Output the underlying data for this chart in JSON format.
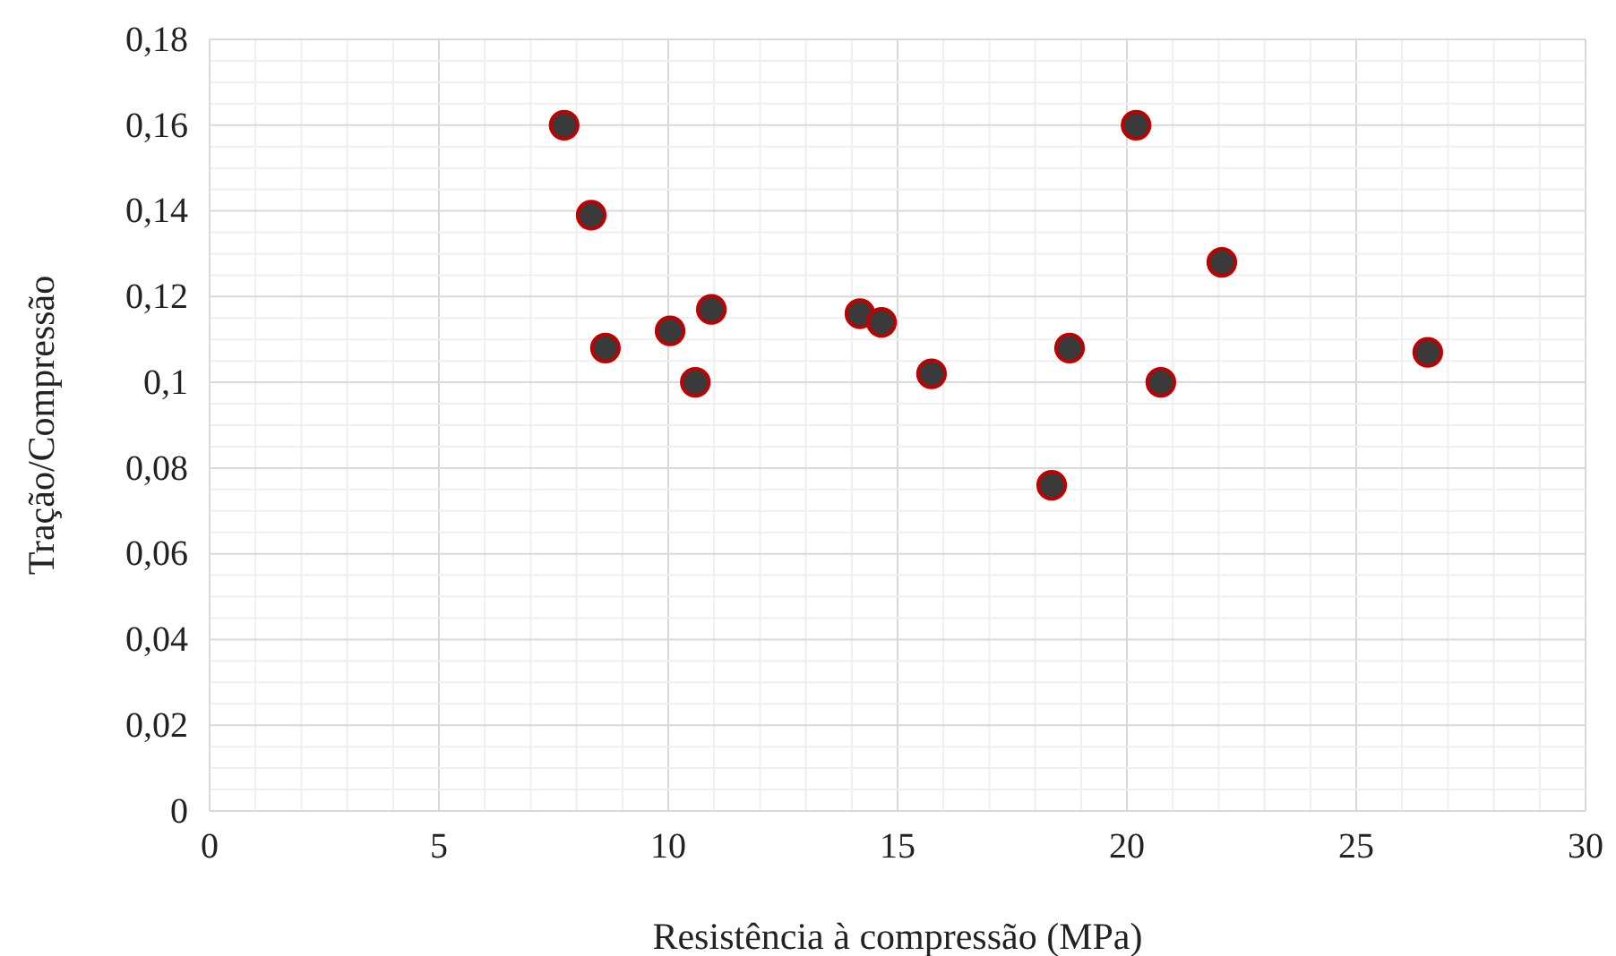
{
  "chart_data": {
    "type": "scatter",
    "xlabel": "Resistência à compressão (MPa)",
    "ylabel": "Tração/Compressão",
    "series": [
      {
        "color": "#c00000",
        "x": [
          7.73,
          8.32,
          8.63,
          10.04,
          10.59,
          10.94,
          14.18,
          14.65,
          15.74,
          18.36,
          18.75,
          20.2,
          20.74,
          22.07,
          26.56
        ],
        "values": [
          0.16,
          0.139,
          0.108,
          0.112,
          0.1,
          0.117,
          0.116,
          0.114,
          0.102,
          0.076,
          0.108,
          0.16,
          0.1,
          0.128,
          0.107
        ]
      }
    ],
    "xlim": [
      0,
      30
    ],
    "xticks": [
      0,
      5,
      10,
      15,
      20,
      25,
      30
    ],
    "ylim": [
      0,
      0.18
    ],
    "yticks": [
      0,
      {
        "value": 0.02,
        "label": "0,02"
      },
      {
        "value": 0.04,
        "label": "0,04"
      },
      {
        "value": 0.06,
        "label": "0,06"
      },
      {
        "value": 0.08,
        "label": "0,08"
      },
      {
        "value": 0.1,
        "label": "0,1"
      },
      {
        "value": 0.12,
        "label": "0,12"
      },
      {
        "value": 0.14,
        "label": "0,14"
      },
      {
        "value": 0.16,
        "label": "0,16"
      },
      {
        "value": 0.18,
        "label": "0,18"
      }
    ],
    "grid": true,
    "marker": "circle"
  }
}
